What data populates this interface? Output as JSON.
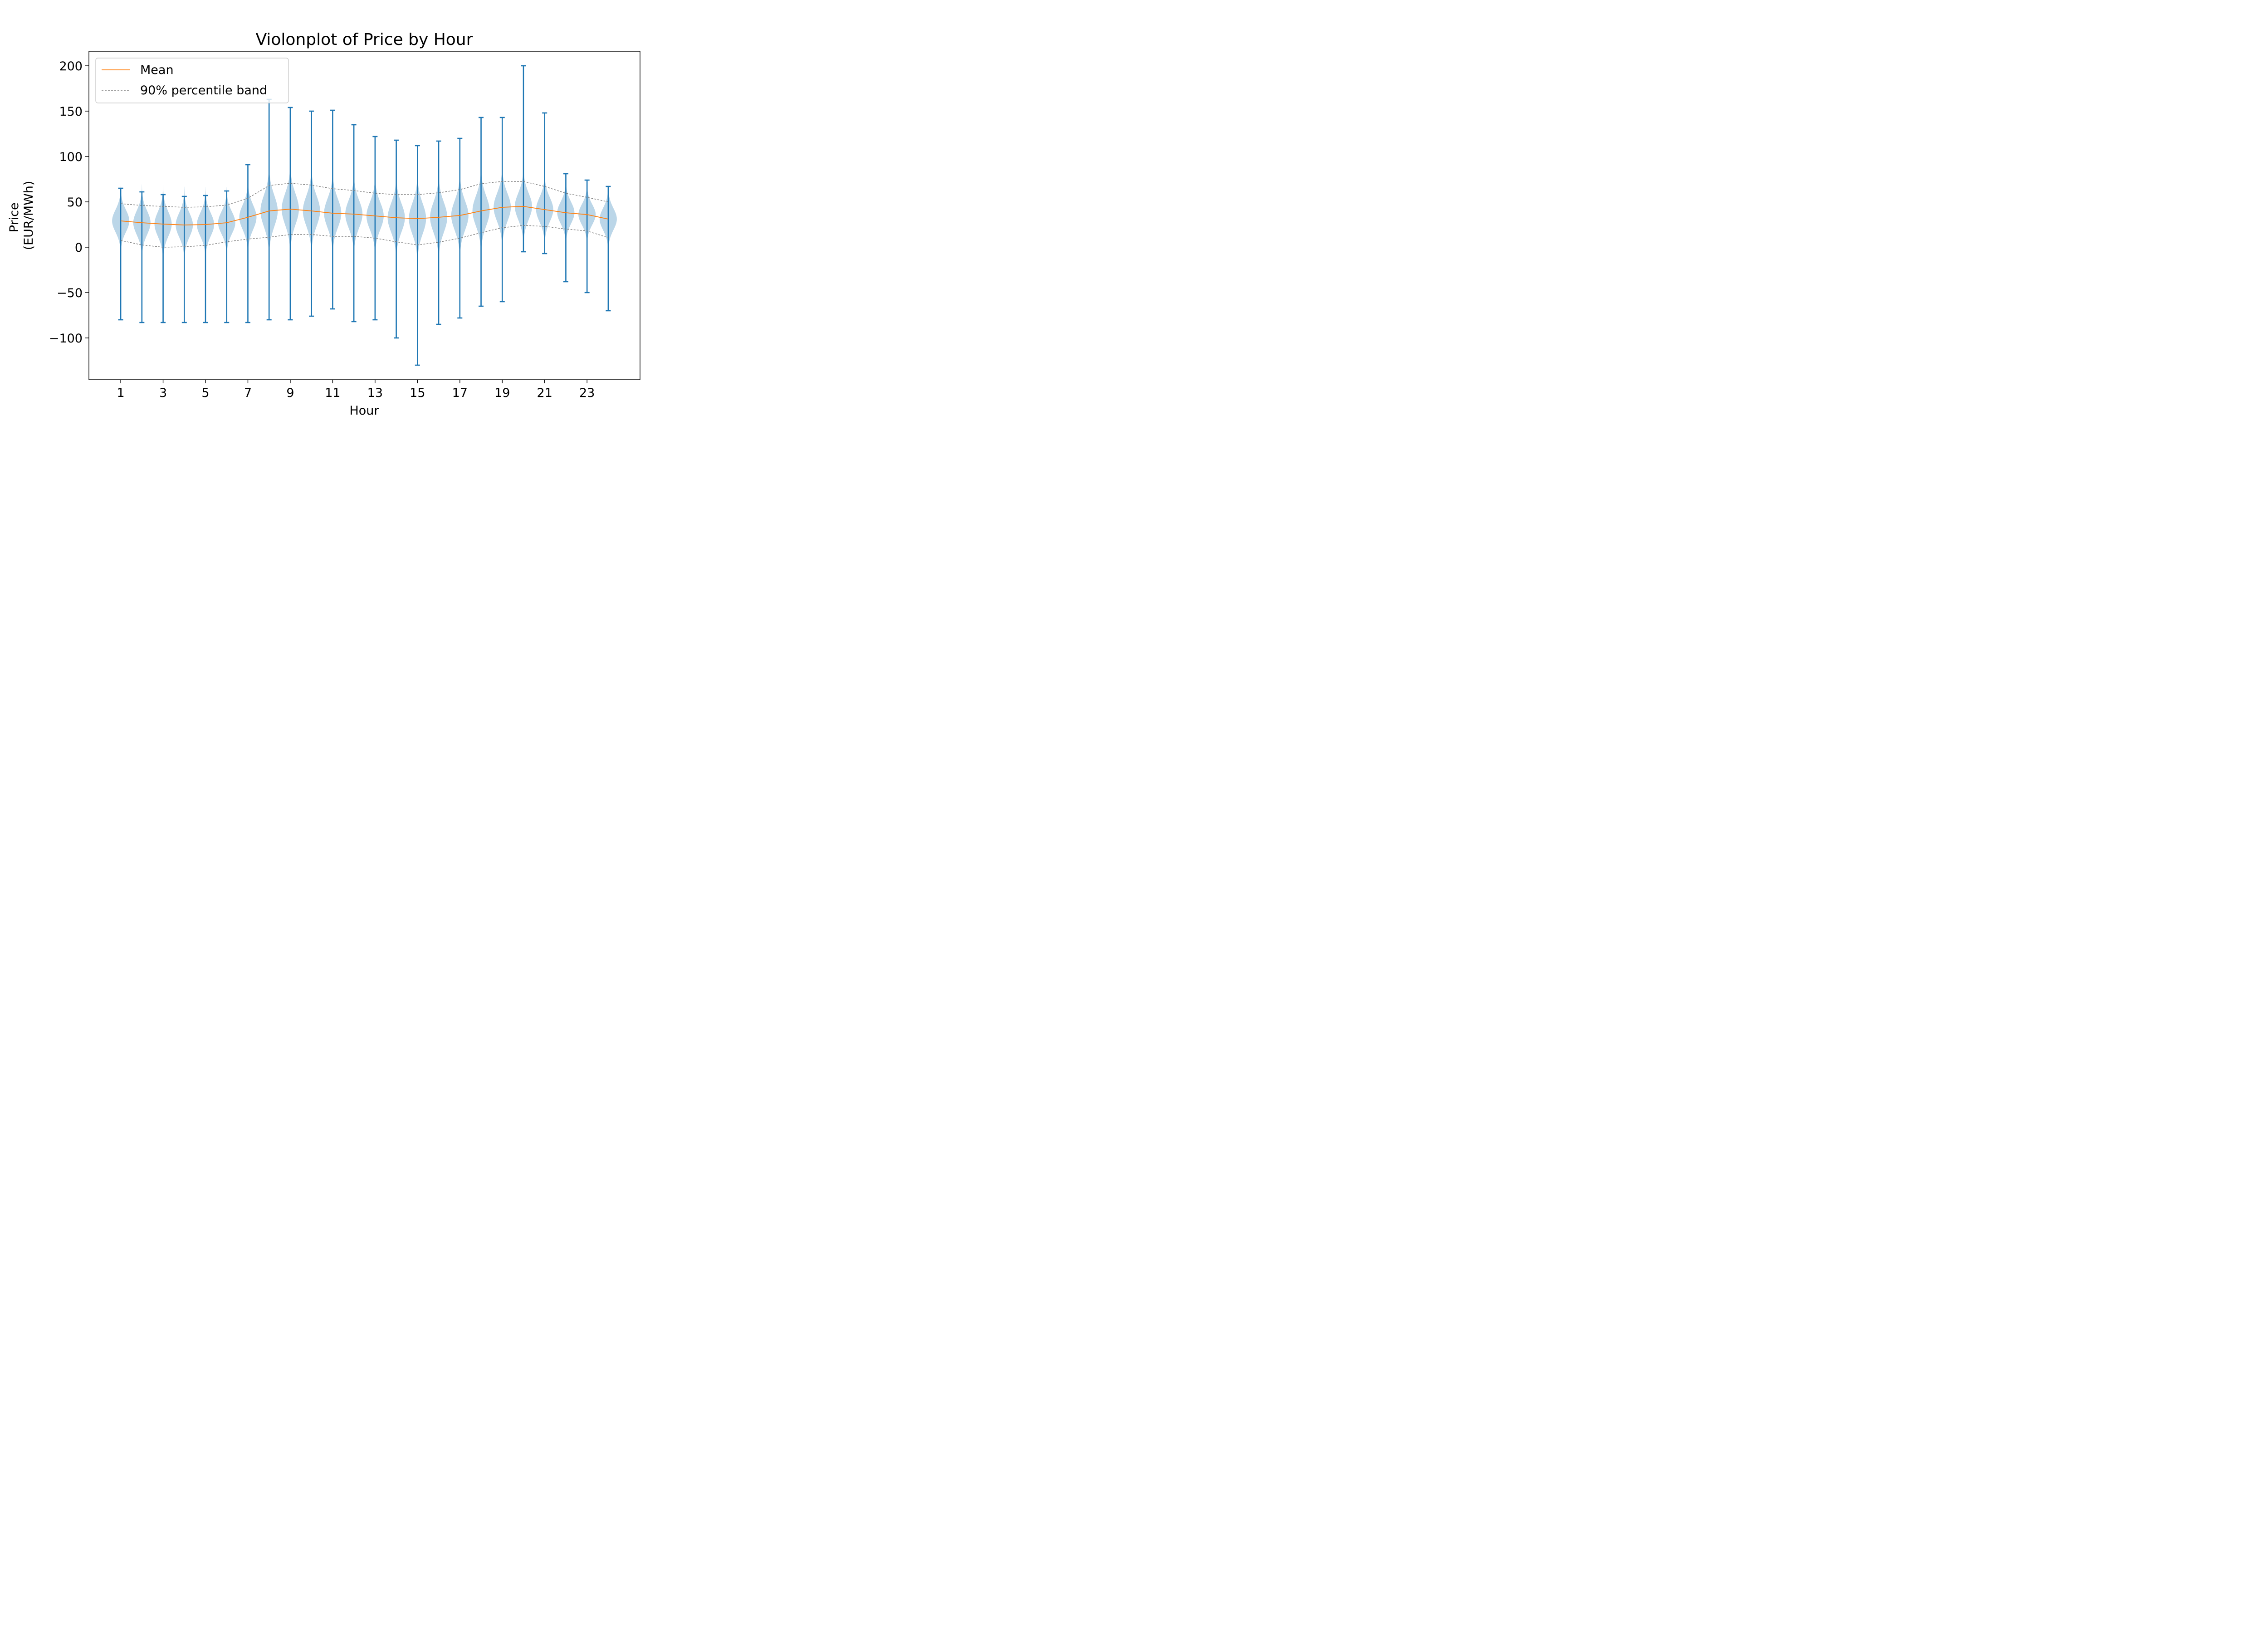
{
  "chart_data": {
    "type": "violin",
    "title": "Violonplot of Price by Hour",
    "xlabel": "Hour",
    "ylabel_lines": [
      "Price",
      "(EUR/MWh)"
    ],
    "categories": [
      1,
      2,
      3,
      4,
      5,
      6,
      7,
      8,
      9,
      10,
      11,
      12,
      13,
      14,
      15,
      16,
      17,
      18,
      19,
      20,
      21,
      22,
      23,
      24
    ],
    "xticks": [
      1,
      3,
      5,
      7,
      9,
      11,
      13,
      15,
      17,
      19,
      21,
      23
    ],
    "yticks": [
      -100,
      -50,
      0,
      50,
      100,
      150,
      200
    ],
    "ytick_labels": [
      "−100",
      "−50",
      "0",
      "50",
      "100",
      "150",
      "200"
    ],
    "xlim": [
      -0.5,
      25.5
    ],
    "ylim": [
      -146,
      216
    ],
    "min": [
      -80,
      -83,
      -83,
      -83,
      -83,
      -83,
      -83,
      -80,
      -80,
      -76,
      -68,
      -82,
      -80,
      -100,
      -130,
      -85,
      -78,
      -65,
      -60,
      -5,
      -7,
      -38,
      -50,
      -70
    ],
    "max": [
      65,
      61,
      58,
      56,
      57,
      62,
      91,
      163,
      154,
      150,
      151,
      135,
      122,
      118,
      112,
      117,
      120,
      143,
      143,
      200,
      148,
      81,
      74,
      67
    ],
    "mean": [
      29,
      27,
      25.5,
      24.5,
      25,
      27,
      33,
      40,
      42,
      40,
      37.5,
      36.5,
      34.5,
      32.5,
      31.5,
      33,
      35,
      40,
      44,
      45,
      41.5,
      38,
      36,
      31
    ],
    "p95": [
      48,
      46,
      45,
      44,
      44.5,
      46.5,
      54,
      68,
      70.5,
      68.5,
      64.5,
      62.5,
      59.5,
      58,
      58,
      60,
      63.5,
      70,
      72.5,
      72.5,
      67,
      59.5,
      55,
      50
    ],
    "p5": [
      7.5,
      2.5,
      0,
      0.5,
      2,
      6,
      9,
      11,
      14,
      14,
      12,
      12,
      10,
      6,
      2.5,
      5.5,
      10,
      16,
      21.5,
      24,
      23,
      20,
      18,
      10.5
    ],
    "legend": {
      "position": "upper-left",
      "entries": [
        {
          "label": "Mean",
          "color": "#ff7f0e",
          "style": "solid"
        },
        {
          "label": "90% percentile band",
          "color": "#808080",
          "style": "dashed"
        }
      ]
    },
    "colors": {
      "violin_fill": "#1f77b4",
      "whisker": "#1f77b4",
      "mean_line": "#ff7f0e",
      "band_line": "#808080"
    }
  }
}
